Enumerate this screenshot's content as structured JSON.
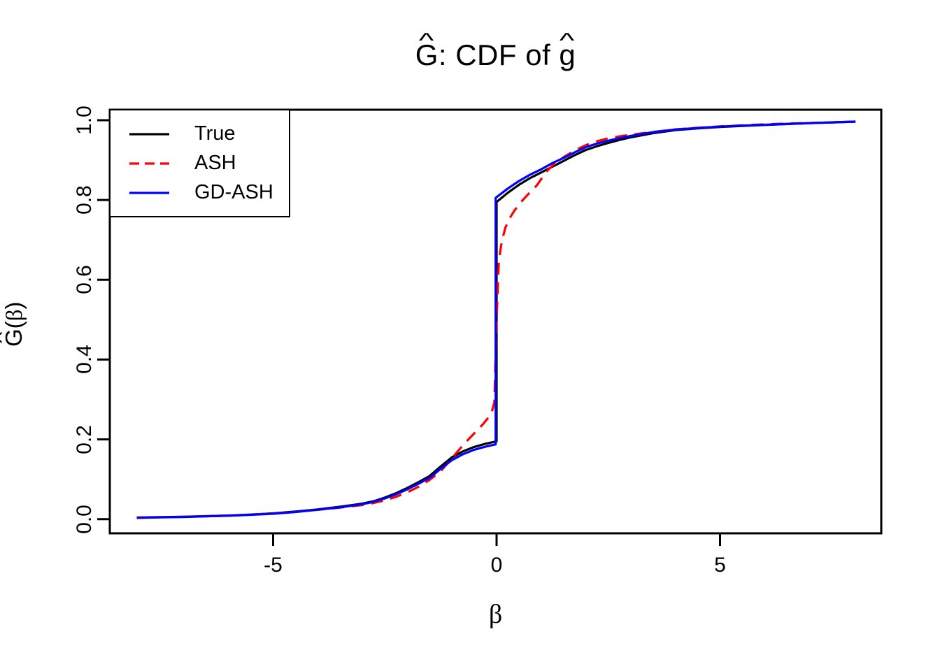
{
  "background": "#FFFFFF",
  "title": {
    "hat_char": "^",
    "g_letter": "G",
    "separator_text": ": CDF of ",
    "g2_letter": "g"
  },
  "axes": {
    "x": {
      "label_char": "β",
      "ticks": [
        {
          "value": -5,
          "label": "-5"
        },
        {
          "value": 0,
          "label": "0"
        },
        {
          "value": 5,
          "label": "5"
        }
      ]
    },
    "y": {
      "label_g": "G",
      "label_open": "(",
      "label_beta": "β",
      "label_close": ")",
      "ticks": [
        {
          "value": 0.0,
          "label": "0.0"
        },
        {
          "value": 0.2,
          "label": "0.2"
        },
        {
          "value": 0.4,
          "label": "0.4"
        },
        {
          "value": 0.6,
          "label": "0.6"
        },
        {
          "value": 0.8,
          "label": "0.8"
        },
        {
          "value": 1.0,
          "label": "1.0"
        }
      ]
    }
  },
  "legend": {
    "entries": [
      {
        "label": "True",
        "color": "#000000",
        "style": "solid"
      },
      {
        "label": "ASH",
        "color": "#FF0000",
        "style": "dashed"
      },
      {
        "label": "GD-ASH",
        "color": "#0000FF",
        "style": "solid"
      }
    ]
  },
  "chart_data": {
    "type": "line",
    "title": "Ĝ: CDF of ĝ",
    "xlabel": "β",
    "ylabel": "Ĝ(β)",
    "xlim": [
      -8.654,
      8.607
    ],
    "ylim": [
      -0.0355,
      1.0262
    ],
    "x_ticks": [
      -5,
      0,
      5
    ],
    "y_ticks": [
      0.0,
      0.2,
      0.4,
      0.6,
      0.8,
      1.0
    ],
    "grid": false,
    "legend_position": "topleft",
    "jump_at_zero": {
      "true_from": 0.195,
      "true_to": 0.795,
      "gdash_from": 0.1875,
      "gdash_to": 0.8055
    },
    "series": [
      {
        "name": "True",
        "color": "#000000",
        "dash": "solid",
        "points": [
          [
            -8.05,
            0.004
          ],
          [
            -7.5,
            0.005
          ],
          [
            -7,
            0.006
          ],
          [
            -6.5,
            0.0075
          ],
          [
            -6,
            0.009
          ],
          [
            -5.5,
            0.0115
          ],
          [
            -5,
            0.0145
          ],
          [
            -4.5,
            0.019
          ],
          [
            -4,
            0.0245
          ],
          [
            -3.5,
            0.031
          ],
          [
            -3,
            0.039
          ],
          [
            -2.75,
            0.045
          ],
          [
            -2.5,
            0.054
          ],
          [
            -2.25,
            0.065
          ],
          [
            -2,
            0.078
          ],
          [
            -1.75,
            0.0925
          ],
          [
            -1.5,
            0.108
          ],
          [
            -1.25,
            0.132
          ],
          [
            -1,
            0.155
          ],
          [
            -0.75,
            0.17
          ],
          [
            -0.5,
            0.181
          ],
          [
            -0.25,
            0.189
          ],
          [
            0,
            0.195
          ],
          [
            0,
            0.795
          ],
          [
            0.25,
            0.818
          ],
          [
            0.5,
            0.838
          ],
          [
            0.75,
            0.855
          ],
          [
            1,
            0.869
          ],
          [
            1.25,
            0.8835
          ],
          [
            1.5,
            0.898
          ],
          [
            1.75,
            0.9125
          ],
          [
            2,
            0.9255
          ],
          [
            2.25,
            0.935
          ],
          [
            2.5,
            0.943
          ],
          [
            2.75,
            0.9505
          ],
          [
            3,
            0.957
          ],
          [
            3.5,
            0.9675
          ],
          [
            4,
            0.975
          ],
          [
            4.5,
            0.9795
          ],
          [
            5,
            0.983
          ],
          [
            5.5,
            0.9855
          ],
          [
            6,
            0.988
          ],
          [
            6.5,
            0.9905
          ],
          [
            7,
            0.9925
          ],
          [
            7.5,
            0.9945
          ],
          [
            8.03,
            0.9965
          ]
        ]
      },
      {
        "name": "ASH",
        "color": "#FF0000",
        "dash": "dashed",
        "points": [
          [
            -8.05,
            0.004
          ],
          [
            -7.5,
            0.005
          ],
          [
            -7,
            0.006
          ],
          [
            -6.5,
            0.0075
          ],
          [
            -6,
            0.009
          ],
          [
            -5.5,
            0.0113
          ],
          [
            -5,
            0.014
          ],
          [
            -4.5,
            0.0183
          ],
          [
            -4,
            0.0235
          ],
          [
            -3.5,
            0.029
          ],
          [
            -3,
            0.0355
          ],
          [
            -2.75,
            0.0405
          ],
          [
            -2.5,
            0.047
          ],
          [
            -2.25,
            0.056
          ],
          [
            -2,
            0.067
          ],
          [
            -1.75,
            0.081
          ],
          [
            -1.5,
            0.098
          ],
          [
            -1.25,
            0.12
          ],
          [
            -1,
            0.1525
          ],
          [
            -0.9,
            0.166
          ],
          [
            -0.8,
            0.179
          ],
          [
            -0.7,
            0.1915
          ],
          [
            -0.6,
            0.2035
          ],
          [
            -0.5,
            0.215
          ],
          [
            -0.4,
            0.2265
          ],
          [
            -0.3,
            0.2385
          ],
          [
            -0.2,
            0.2525
          ],
          [
            -0.15,
            0.261
          ],
          [
            -0.1,
            0.272
          ],
          [
            -0.05,
            0.292
          ],
          [
            0,
            0.5
          ],
          [
            0.05,
            0.645
          ],
          [
            0.1,
            0.685
          ],
          [
            0.15,
            0.711
          ],
          [
            0.2,
            0.7315
          ],
          [
            0.3,
            0.7555
          ],
          [
            0.4,
            0.7735
          ],
          [
            0.5,
            0.7885
          ],
          [
            0.6,
            0.8015
          ],
          [
            0.7,
            0.8135
          ],
          [
            0.8,
            0.825
          ],
          [
            0.9,
            0.8365
          ],
          [
            1,
            0.8525
          ],
          [
            1.1,
            0.869
          ],
          [
            1.25,
            0.886
          ],
          [
            1.5,
            0.9075
          ],
          [
            1.75,
            0.924
          ],
          [
            2,
            0.9375
          ],
          [
            2.25,
            0.9475
          ],
          [
            2.5,
            0.9545
          ],
          [
            2.75,
            0.9595
          ],
          [
            3,
            0.9635
          ],
          [
            3.5,
            0.9705
          ],
          [
            4,
            0.977
          ],
          [
            4.5,
            0.981
          ],
          [
            5,
            0.9845
          ],
          [
            5.5,
            0.987
          ],
          [
            6,
            0.9895
          ],
          [
            6.5,
            0.9915
          ],
          [
            7,
            0.993
          ],
          [
            7.5,
            0.9945
          ],
          [
            8.03,
            0.9965
          ]
        ]
      },
      {
        "name": "GD-ASH",
        "color": "#0000FF",
        "dash": "solid",
        "points": [
          [
            -8.05,
            0.003
          ],
          [
            -7.5,
            0.0045
          ],
          [
            -7,
            0.0055
          ],
          [
            -6.5,
            0.007
          ],
          [
            -6,
            0.0085
          ],
          [
            -5.5,
            0.011
          ],
          [
            -5,
            0.0135
          ],
          [
            -4.5,
            0.018
          ],
          [
            -4,
            0.0235
          ],
          [
            -3.5,
            0.0295
          ],
          [
            -3,
            0.0375
          ],
          [
            -2.75,
            0.0435
          ],
          [
            -2.5,
            0.052
          ],
          [
            -2.25,
            0.0625
          ],
          [
            -2,
            0.0745
          ],
          [
            -1.75,
            0.0885
          ],
          [
            -1.5,
            0.1035
          ],
          [
            -1.25,
            0.126
          ],
          [
            -1,
            0.148
          ],
          [
            -0.75,
            0.163
          ],
          [
            -0.5,
            0.174
          ],
          [
            -0.25,
            0.1815
          ],
          [
            -0.02,
            0.1875
          ],
          [
            -0.02,
            0.8055
          ],
          [
            0.25,
            0.8285
          ],
          [
            0.5,
            0.8475
          ],
          [
            0.75,
            0.8635
          ],
          [
            1,
            0.877
          ],
          [
            1.25,
            0.8925
          ],
          [
            1.5,
            0.9055
          ],
          [
            1.75,
            0.9195
          ],
          [
            2,
            0.9325
          ],
          [
            2.25,
            0.9415
          ],
          [
            2.5,
            0.9485
          ],
          [
            2.75,
            0.955
          ],
          [
            3,
            0.9605
          ],
          [
            3.5,
            0.97
          ],
          [
            4,
            0.9765
          ],
          [
            4.5,
            0.9805
          ],
          [
            5,
            0.984
          ],
          [
            5.5,
            0.9865
          ],
          [
            6,
            0.9885
          ],
          [
            6.5,
            0.9905
          ],
          [
            7,
            0.9925
          ],
          [
            7.5,
            0.9945
          ],
          [
            8.03,
            0.9965
          ]
        ]
      }
    ]
  }
}
